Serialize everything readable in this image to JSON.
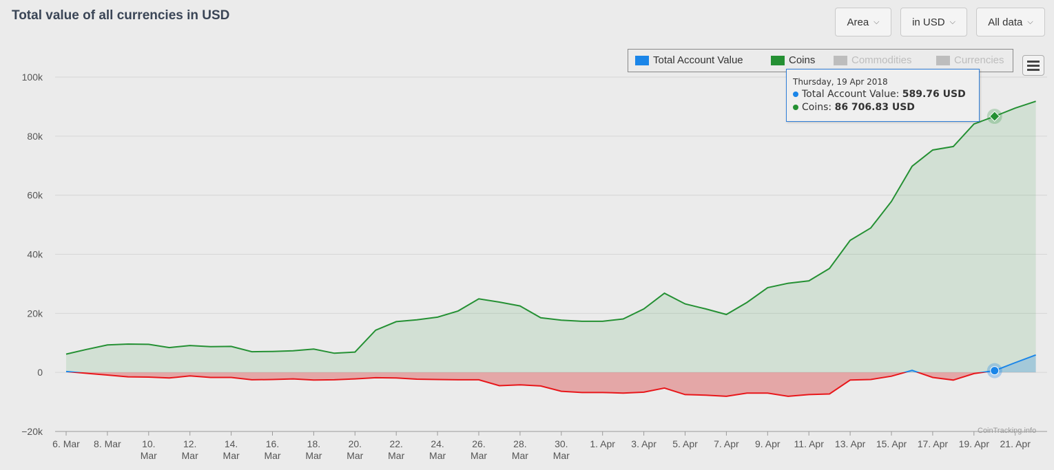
{
  "title": "Total value of all currencies in USD",
  "controls": {
    "chart_type": "Area",
    "currency": "in USD",
    "range": "All data"
  },
  "legend": [
    {
      "label": "Total Account Value",
      "color": "#1a85e8",
      "active": true
    },
    {
      "label": "Coins",
      "color": "#249033",
      "active": true
    },
    {
      "label": "Commodities",
      "color": "#bdbdbd",
      "active": false
    },
    {
      "label": "Currencies",
      "color": "#bdbdbd",
      "active": false
    }
  ],
  "tooltip": {
    "date": "Thursday, 19 Apr 2018",
    "rows": [
      {
        "label": "Total Account Value: ",
        "value": "589.76 USD",
        "color": "#1a85e8"
      },
      {
        "label": "Coins: ",
        "value": "86 706.83 USD",
        "color": "#249033"
      }
    ]
  },
  "credit": "CoinTracking.info",
  "chart_data": {
    "type": "area",
    "title": "Total value of all currencies in USD",
    "ylim": [
      -20000,
      100000
    ],
    "yticks": [
      -20000,
      0,
      20000,
      40000,
      60000,
      80000,
      100000
    ],
    "ytick_labels": [
      "−20k",
      "0",
      "20k",
      "40k",
      "60k",
      "80k",
      "100k"
    ],
    "x_start": "2018-03-06",
    "x_tick_labels": [
      [
        "6. Mar"
      ],
      [
        "8. Mar"
      ],
      [
        "10.",
        "Mar"
      ],
      [
        "12.",
        "Mar"
      ],
      [
        "14.",
        "Mar"
      ],
      [
        "16.",
        "Mar"
      ],
      [
        "18.",
        "Mar"
      ],
      [
        "20.",
        "Mar"
      ],
      [
        "22.",
        "Mar"
      ],
      [
        "24.",
        "Mar"
      ],
      [
        "26.",
        "Mar"
      ],
      [
        "28.",
        "Mar"
      ],
      [
        "30.",
        "Mar"
      ],
      [
        "1. Apr"
      ],
      [
        "3. Apr"
      ],
      [
        "5. Apr"
      ],
      [
        "7. Apr"
      ],
      [
        "9. Apr"
      ],
      [
        "11. Apr"
      ],
      [
        "13. Apr"
      ],
      [
        "15. Apr"
      ],
      [
        "17. Apr"
      ],
      [
        "19. Apr"
      ],
      [
        "21. Apr"
      ]
    ],
    "series": [
      {
        "name": "Coins",
        "color": "#249033",
        "values": [
          6200,
          7800,
          9300,
          9600,
          9500,
          8400,
          9100,
          8700,
          8800,
          7000,
          7100,
          7300,
          7900,
          6500,
          6900,
          14300,
          17200,
          17800,
          18700,
          20800,
          24900,
          23800,
          22500,
          18500,
          17700,
          17300,
          17300,
          18100,
          21500,
          26800,
          23200,
          21500,
          19600,
          23700,
          28700,
          30200,
          31000,
          35200,
          44700,
          48900,
          57900,
          69800,
          75300,
          76500,
          84100,
          86706.83,
          89500,
          91800
        ]
      },
      {
        "name": "Total Account Value",
        "color": "#1a85e8",
        "negative_color": "#e8161a",
        "values": [
          300,
          -300,
          -900,
          -1500,
          -1600,
          -1900,
          -1200,
          -1700,
          -1700,
          -2500,
          -2400,
          -2200,
          -2600,
          -2500,
          -2200,
          -1800,
          -1900,
          -2300,
          -2400,
          -2500,
          -2500,
          -4500,
          -4200,
          -4600,
          -6400,
          -6800,
          -6800,
          -7000,
          -6700,
          -5300,
          -7500,
          -7700,
          -8100,
          -7000,
          -7000,
          -8100,
          -7500,
          -7300,
          -2600,
          -2400,
          -1300,
          700,
          -1700,
          -2600,
          -400,
          589.76,
          3300,
          5900
        ]
      }
    ],
    "highlight_index": 45
  }
}
